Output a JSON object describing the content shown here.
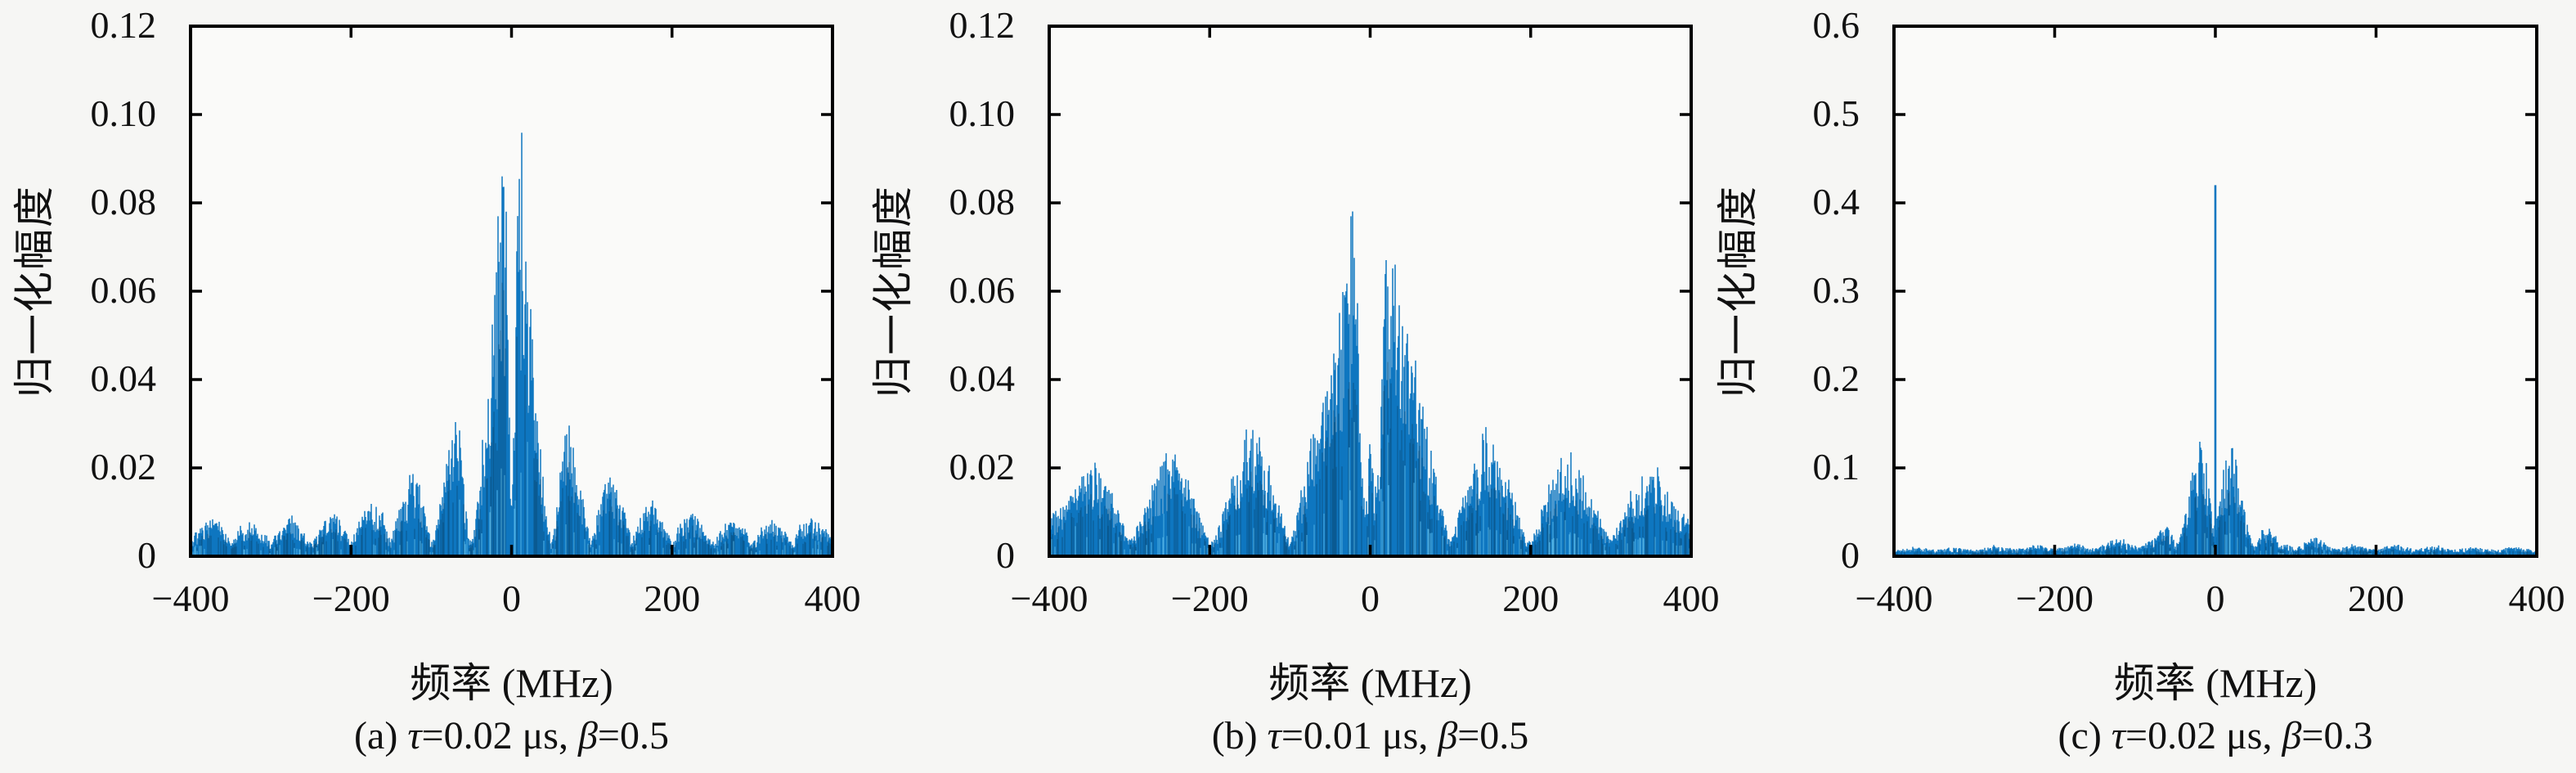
{
  "figure": {
    "background": "#f6f6f4",
    "plot_background": "#fafaf9",
    "axis_color": "#000000",
    "text_color": "#111111",
    "series_color": "#0e76c0",
    "series_dark_color": "#0a5a92",
    "series_light_color": "#56b7e8"
  },
  "chart_data": [
    {
      "id": "a",
      "type": "area",
      "title": "",
      "xlabel": "频率 (MHz)",
      "ylabel": "归一化幅度",
      "caption_parts": [
        {
          "t": "(a) ",
          "i": false
        },
        {
          "t": "τ",
          "i": true
        },
        {
          "t": "=0.02 μs, ",
          "i": false
        },
        {
          "t": "β",
          "i": true
        },
        {
          "t": "=0.5",
          "i": false
        }
      ],
      "xlim": [
        -400,
        400
      ],
      "ylim": [
        0,
        0.12
      ],
      "xticks": [
        -400,
        -200,
        0,
        200,
        400
      ],
      "xtick_labels": [
        "−400",
        "−200",
        "0",
        "200",
        "400"
      ],
      "yticks": [
        0,
        0.02,
        0.04,
        0.06,
        0.08,
        0.1,
        0.12
      ],
      "ytick_labels": [
        "0",
        "0.02",
        "0.04",
        "0.06",
        "0.08",
        "0.10",
        "0.12"
      ],
      "grid": false,
      "legend": null,
      "symmetric": true,
      "peak_value": 0.093,
      "lobe_null_spacing_MHz": 50,
      "noise_floor": 0.0018,
      "envelope_one_sided": [
        [
          0,
          0.005
        ],
        [
          2,
          0.03
        ],
        [
          5,
          0.06
        ],
        [
          8,
          0.088
        ],
        [
          10,
          0.093
        ],
        [
          14,
          0.085
        ],
        [
          18,
          0.068
        ],
        [
          22,
          0.055
        ],
        [
          28,
          0.045
        ],
        [
          33,
          0.032
        ],
        [
          38,
          0.02
        ],
        [
          44,
          0.01
        ],
        [
          50,
          0.003
        ],
        [
          55,
          0.008
        ],
        [
          62,
          0.022
        ],
        [
          68,
          0.032
        ],
        [
          75,
          0.028
        ],
        [
          85,
          0.016
        ],
        [
          95,
          0.006
        ],
        [
          100,
          0.003
        ],
        [
          110,
          0.012
        ],
        [
          118,
          0.018
        ],
        [
          125,
          0.018
        ],
        [
          133,
          0.014
        ],
        [
          142,
          0.01
        ],
        [
          150,
          0.003
        ],
        [
          160,
          0.009
        ],
        [
          175,
          0.012
        ],
        [
          190,
          0.008
        ],
        [
          200,
          0.003
        ],
        [
          210,
          0.007
        ],
        [
          225,
          0.01
        ],
        [
          240,
          0.006
        ],
        [
          250,
          0.003
        ],
        [
          265,
          0.007
        ],
        [
          275,
          0.009
        ],
        [
          290,
          0.006
        ],
        [
          300,
          0.003
        ],
        [
          315,
          0.007
        ],
        [
          325,
          0.008
        ],
        [
          340,
          0.006
        ],
        [
          350,
          0.003
        ],
        [
          360,
          0.007
        ],
        [
          375,
          0.008
        ],
        [
          390,
          0.006
        ],
        [
          400,
          0.004
        ]
      ],
      "dc_spike": null
    },
    {
      "id": "b",
      "type": "area",
      "title": "",
      "xlabel": "频率 (MHz)",
      "ylabel": "归一化幅度",
      "caption_parts": [
        {
          "t": "(b) ",
          "i": false
        },
        {
          "t": "τ",
          "i": true
        },
        {
          "t": "=0.01 μs, ",
          "i": false
        },
        {
          "t": "β",
          "i": true
        },
        {
          "t": "=0.5",
          "i": false
        }
      ],
      "xlim": [
        -400,
        400
      ],
      "ylim": [
        0,
        0.12
      ],
      "xticks": [
        -400,
        -200,
        0,
        200,
        400
      ],
      "xtick_labels": [
        "−400",
        "−200",
        "0",
        "200",
        "400"
      ],
      "yticks": [
        0,
        0.02,
        0.04,
        0.06,
        0.08,
        0.1,
        0.12
      ],
      "ytick_labels": [
        "0",
        "0.02",
        "0.04",
        "0.06",
        "0.08",
        "0.10",
        "0.12"
      ],
      "grid": false,
      "legend": null,
      "symmetric": true,
      "peak_value": 0.074,
      "lobe_null_spacing_MHz": 100,
      "noise_floor": 0.0018,
      "envelope_one_sided": [
        [
          0,
          0.03
        ],
        [
          4,
          0.016
        ],
        [
          8,
          0.014
        ],
        [
          12,
          0.022
        ],
        [
          16,
          0.06
        ],
        [
          20,
          0.074
        ],
        [
          24,
          0.07
        ],
        [
          28,
          0.062
        ],
        [
          35,
          0.058
        ],
        [
          42,
          0.052
        ],
        [
          50,
          0.046
        ],
        [
          58,
          0.04
        ],
        [
          65,
          0.035
        ],
        [
          72,
          0.028
        ],
        [
          80,
          0.02
        ],
        [
          88,
          0.012
        ],
        [
          95,
          0.006
        ],
        [
          100,
          0.003
        ],
        [
          108,
          0.008
        ],
        [
          118,
          0.014
        ],
        [
          128,
          0.02
        ],
        [
          140,
          0.026
        ],
        [
          150,
          0.028
        ],
        [
          160,
          0.024
        ],
        [
          170,
          0.018
        ],
        [
          180,
          0.012
        ],
        [
          192,
          0.005
        ],
        [
          200,
          0.003
        ],
        [
          210,
          0.008
        ],
        [
          225,
          0.016
        ],
        [
          240,
          0.022
        ],
        [
          250,
          0.023
        ],
        [
          260,
          0.02
        ],
        [
          272,
          0.015
        ],
        [
          285,
          0.009
        ],
        [
          295,
          0.005
        ],
        [
          300,
          0.004
        ],
        [
          312,
          0.009
        ],
        [
          325,
          0.015
        ],
        [
          340,
          0.019
        ],
        [
          350,
          0.02
        ],
        [
          360,
          0.018
        ],
        [
          372,
          0.014
        ],
        [
          385,
          0.011
        ],
        [
          395,
          0.009
        ],
        [
          400,
          0.008
        ]
      ],
      "dc_spike": null
    },
    {
      "id": "c",
      "type": "area",
      "title": "",
      "xlabel": "频率 (MHz)",
      "ylabel": "归一化幅度",
      "caption_parts": [
        {
          "t": "(c) ",
          "i": false
        },
        {
          "t": "τ",
          "i": true
        },
        {
          "t": "=0.02 μs, ",
          "i": false
        },
        {
          "t": "β",
          "i": true
        },
        {
          "t": "=0.3",
          "i": false
        }
      ],
      "xlim": [
        -400,
        400
      ],
      "ylim": [
        0,
        0.6
      ],
      "xticks": [
        -400,
        -200,
        0,
        200,
        400
      ],
      "xtick_labels": [
        "−400",
        "−200",
        "0",
        "200",
        "400"
      ],
      "yticks": [
        0,
        0.1,
        0.2,
        0.3,
        0.4,
        0.5,
        0.6
      ],
      "ytick_labels": [
        "0",
        "0.1",
        "0.2",
        "0.3",
        "0.4",
        "0.5",
        "0.6"
      ],
      "grid": false,
      "legend": null,
      "symmetric": true,
      "peak_value": 0.42,
      "lobe_null_spacing_MHz": 50,
      "noise_floor": 0.004,
      "envelope_one_sided": [
        [
          0,
          0.03
        ],
        [
          5,
          0.06
        ],
        [
          10,
          0.09
        ],
        [
          15,
          0.12
        ],
        [
          20,
          0.13
        ],
        [
          25,
          0.11
        ],
        [
          30,
          0.09
        ],
        [
          35,
          0.06
        ],
        [
          40,
          0.035
        ],
        [
          45,
          0.02
        ],
        [
          50,
          0.012
        ],
        [
          55,
          0.025
        ],
        [
          60,
          0.035
        ],
        [
          67,
          0.03
        ],
        [
          75,
          0.022
        ],
        [
          85,
          0.015
        ],
        [
          95,
          0.01
        ],
        [
          105,
          0.012
        ],
        [
          115,
          0.018
        ],
        [
          125,
          0.02
        ],
        [
          135,
          0.015
        ],
        [
          145,
          0.01
        ],
        [
          155,
          0.008
        ],
        [
          165,
          0.012
        ],
        [
          175,
          0.014
        ],
        [
          190,
          0.01
        ],
        [
          200,
          0.008
        ],
        [
          215,
          0.012
        ],
        [
          225,
          0.013
        ],
        [
          240,
          0.009
        ],
        [
          250,
          0.008
        ],
        [
          265,
          0.01
        ],
        [
          275,
          0.012
        ],
        [
          290,
          0.009
        ],
        [
          300,
          0.007
        ],
        [
          315,
          0.009
        ],
        [
          325,
          0.01
        ],
        [
          340,
          0.008
        ],
        [
          350,
          0.007
        ],
        [
          360,
          0.009
        ],
        [
          375,
          0.01
        ],
        [
          390,
          0.008
        ],
        [
          400,
          0.007
        ]
      ],
      "dc_spike": {
        "freq": 0,
        "value": 0.42
      }
    }
  ]
}
